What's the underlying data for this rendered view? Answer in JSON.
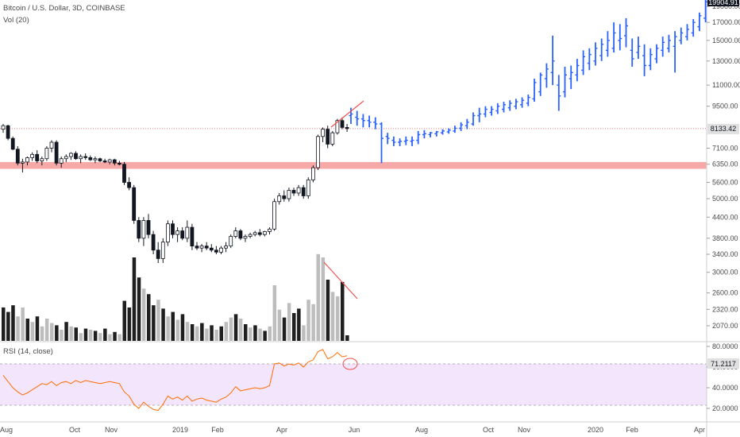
{
  "header": {
    "symbol_line": "Bitcoin / U.S. Dollar, 3D, COINBASE",
    "volume_label": "Vol (20)",
    "rsi_label": "RSI (14, close)"
  },
  "price_tags": {
    "top": "19904.91",
    "current": "8133.42",
    "rsi": "71.2117"
  },
  "colors": {
    "candle": "#131722",
    "projection": "#2962ff",
    "support_zone": "#f7a9a8",
    "trendline": "#ef5350",
    "rsi_line": "#ff6d00",
    "rsi_band": "#f3e5fc"
  },
  "chart_data": {
    "type": "candlestick",
    "price_axis": {
      "ticks": [
        "19000.00",
        "17000.00",
        "15000.00",
        "13000.00",
        "11000.00",
        "9500.00",
        "8133.42",
        "7100.00",
        "6350.00",
        "5600.00",
        "5000.00",
        "4400.00",
        "3800.00",
        "3400.00",
        "3000.00",
        "2600.00",
        "2320.00",
        "2070.00"
      ],
      "scale": "log"
    },
    "rsi_axis": {
      "ticks": [
        "80.0000",
        "71.2117",
        "60.0000",
        "40.0000",
        "20.0000"
      ],
      "band": [
        30,
        70
      ]
    },
    "time_axis": [
      "Aug",
      "Oct",
      "Nov",
      "2019",
      "Feb",
      "Apr",
      "Jun",
      "Aug",
      "Oct",
      "Nov",
      "2020",
      "Feb",
      "Apr"
    ],
    "support_zone": [
      6150,
      6450
    ],
    "current_price": 8133.42,
    "candles": [
      [
        8100,
        8400,
        7900,
        8300
      ],
      [
        8300,
        8350,
        7500,
        7600
      ],
      [
        7600,
        7700,
        7000,
        7050
      ],
      [
        7050,
        7200,
        6300,
        6400
      ],
      [
        6400,
        6600,
        6000,
        6450
      ],
      [
        6450,
        6700,
        6300,
        6650
      ],
      [
        6650,
        6900,
        6500,
        6800
      ],
      [
        6800,
        7000,
        6400,
        6500
      ],
      [
        6500,
        6700,
        6300,
        6600
      ],
      [
        6600,
        7200,
        6500,
        7100
      ],
      [
        7100,
        7500,
        6900,
        7400
      ],
      [
        7400,
        7500,
        6300,
        6400
      ],
      [
        6400,
        6700,
        6200,
        6600
      ],
      [
        6600,
        6800,
        6450,
        6700
      ],
      [
        6700,
        6900,
        6550,
        6850
      ],
      [
        6850,
        6950,
        6550,
        6600
      ],
      [
        6600,
        6800,
        6400,
        6700
      ],
      [
        6700,
        6850,
        6550,
        6650
      ],
      [
        6650,
        6750,
        6500,
        6550
      ],
      [
        6550,
        6700,
        6400,
        6600
      ],
      [
        6600,
        6650,
        6450,
        6500
      ],
      [
        6500,
        6600,
        6400,
        6450
      ],
      [
        6450,
        6600,
        6350,
        6550
      ],
      [
        6550,
        6600,
        6300,
        6400
      ],
      [
        6400,
        6500,
        6300,
        6350
      ],
      [
        6350,
        6450,
        5500,
        5600
      ],
      [
        5600,
        5800,
        5300,
        5400
      ],
      [
        5400,
        5500,
        4200,
        4300
      ],
      [
        4300,
        4400,
        3700,
        3800
      ],
      [
        3800,
        4400,
        3600,
        4300
      ],
      [
        4300,
        4500,
        3800,
        3900
      ],
      [
        3900,
        4000,
        3400,
        3500
      ],
      [
        3500,
        3700,
        3200,
        3300
      ],
      [
        3300,
        3800,
        3200,
        3700
      ],
      [
        3700,
        4300,
        3600,
        4200
      ],
      [
        4200,
        4300,
        3800,
        3900
      ],
      [
        3900,
        4100,
        3700,
        4000
      ],
      [
        4000,
        4100,
        3750,
        3800
      ],
      [
        3800,
        4300,
        3700,
        4100
      ],
      [
        4100,
        4200,
        3500,
        3600
      ],
      [
        3600,
        3700,
        3500,
        3550
      ],
      [
        3550,
        3650,
        3450,
        3600
      ],
      [
        3600,
        3700,
        3500,
        3550
      ],
      [
        3550,
        3650,
        3450,
        3500
      ],
      [
        3500,
        3600,
        3400,
        3450
      ],
      [
        3450,
        3600,
        3400,
        3550
      ],
      [
        3550,
        3700,
        3450,
        3600
      ],
      [
        3600,
        3900,
        3550,
        3850
      ],
      [
        3850,
        4100,
        3800,
        4000
      ],
      [
        4000,
        4050,
        3750,
        3800
      ],
      [
        3800,
        3900,
        3700,
        3850
      ],
      [
        3850,
        3950,
        3800,
        3900
      ],
      [
        3900,
        4000,
        3850,
        3950
      ],
      [
        3950,
        4050,
        3850,
        3900
      ],
      [
        3900,
        4000,
        3850,
        3980
      ],
      [
        3980,
        4100,
        3900,
        4050
      ],
      [
        4050,
        5000,
        4000,
        4900
      ],
      [
        4900,
        5200,
        4800,
        5100
      ],
      [
        5100,
        5300,
        4900,
        5000
      ],
      [
        5000,
        5400,
        4900,
        5300
      ],
      [
        5300,
        5400,
        5100,
        5200
      ],
      [
        5200,
        5500,
        5100,
        5400
      ],
      [
        5400,
        5500,
        5000,
        5100
      ],
      [
        5100,
        5800,
        5000,
        5700
      ],
      [
        5700,
        6300,
        5600,
        6200
      ],
      [
        6200,
        7800,
        6100,
        7700
      ],
      [
        7700,
        8200,
        7400,
        8100
      ],
      [
        8100,
        8300,
        7100,
        7300
      ],
      [
        7300,
        8000,
        7200,
        7900
      ],
      [
        7900,
        8700,
        7800,
        8600
      ],
      [
        8600,
        8800,
        8100,
        8200
      ],
      [
        8200,
        8400,
        7950,
        8133
      ]
    ],
    "volume": [
      [
        0.3,
        "d"
      ],
      [
        0.26,
        "d"
      ],
      [
        0.32,
        "d"
      ],
      [
        0.22,
        "l"
      ],
      [
        0.3,
        "l"
      ],
      [
        0.2,
        "d"
      ],
      [
        0.17,
        "l"
      ],
      [
        0.22,
        "d"
      ],
      [
        0.13,
        "l"
      ],
      [
        0.2,
        "l"
      ],
      [
        0.16,
        "l"
      ],
      [
        0.14,
        "d"
      ],
      [
        0.1,
        "l"
      ],
      [
        0.17,
        "d"
      ],
      [
        0.13,
        "l"
      ],
      [
        0.12,
        "d"
      ],
      [
        0.07,
        "l"
      ],
      [
        0.11,
        "d"
      ],
      [
        0.1,
        "l"
      ],
      [
        0.09,
        "d"
      ],
      [
        0.07,
        "l"
      ],
      [
        0.11,
        "d"
      ],
      [
        0.06,
        "l"
      ],
      [
        0.08,
        "d"
      ],
      [
        0.06,
        "l"
      ],
      [
        0.36,
        "d"
      ],
      [
        0.3,
        "d"
      ],
      [
        0.75,
        "d"
      ],
      [
        0.57,
        "d"
      ],
      [
        0.47,
        "l"
      ],
      [
        0.42,
        "d"
      ],
      [
        0.32,
        "d"
      ],
      [
        0.37,
        "l"
      ],
      [
        0.29,
        "d"
      ],
      [
        0.22,
        "l"
      ],
      [
        0.26,
        "d"
      ],
      [
        0.19,
        "l"
      ],
      [
        0.24,
        "d"
      ],
      [
        0.17,
        "l"
      ],
      [
        0.15,
        "d"
      ],
      [
        0.13,
        "l"
      ],
      [
        0.16,
        "d"
      ],
      [
        0.11,
        "l"
      ],
      [
        0.14,
        "d"
      ],
      [
        0.1,
        "l"
      ],
      [
        0.13,
        "d"
      ],
      [
        0.17,
        "l"
      ],
      [
        0.21,
        "l"
      ],
      [
        0.24,
        "d"
      ],
      [
        0.2,
        "l"
      ],
      [
        0.15,
        "d"
      ],
      [
        0.12,
        "l"
      ],
      [
        0.14,
        "d"
      ],
      [
        0.11,
        "l"
      ],
      [
        0.09,
        "d"
      ],
      [
        0.13,
        "l"
      ],
      [
        0.5,
        "l"
      ],
      [
        0.28,
        "l"
      ],
      [
        0.21,
        "d"
      ],
      [
        0.34,
        "l"
      ],
      [
        0.25,
        "d"
      ],
      [
        0.29,
        "d"
      ],
      [
        0.14,
        "l"
      ],
      [
        0.37,
        "l"
      ],
      [
        0.33,
        "l"
      ],
      [
        0.78,
        "l"
      ],
      [
        0.75,
        "l"
      ],
      [
        0.55,
        "d"
      ],
      [
        0.44,
        "l"
      ],
      [
        0.4,
        "l"
      ],
      [
        0.53,
        "d"
      ],
      [
        0.05,
        "d"
      ]
    ],
    "rsi": [
      52,
      46,
      40,
      36,
      33,
      35,
      38,
      41,
      44,
      43,
      46,
      42,
      45,
      46,
      44,
      47,
      45,
      47,
      46,
      45,
      44,
      45,
      46,
      45,
      44,
      36,
      32,
      24,
      20,
      26,
      22,
      19,
      18,
      24,
      32,
      29,
      31,
      28,
      32,
      27,
      29,
      30,
      28,
      27,
      26,
      29,
      31,
      35,
      41,
      37,
      38,
      39,
      40,
      39,
      40,
      42,
      63,
      64,
      61,
      63,
      62,
      64,
      60,
      65,
      67,
      75,
      77,
      68,
      70,
      74,
      70,
      71
    ],
    "projection": [
      [
        8900,
        9400,
        8400,
        9000
      ],
      [
        8800,
        9200,
        8300,
        8700
      ],
      [
        8700,
        9000,
        8200,
        8600
      ],
      [
        8600,
        8900,
        8200,
        8500
      ],
      [
        8500,
        8800,
        8100,
        8400
      ],
      [
        8400,
        8500,
        6400,
        7600
      ],
      [
        7700,
        7900,
        7300,
        7600
      ],
      [
        7500,
        7700,
        7200,
        7400
      ],
      [
        7400,
        7600,
        7200,
        7450
      ],
      [
        7450,
        7700,
        7250,
        7500
      ],
      [
        7450,
        7700,
        7200,
        7500
      ],
      [
        7500,
        8000,
        7300,
        7800
      ],
      [
        7800,
        8050,
        7600,
        7850
      ],
      [
        7800,
        7950,
        7650,
        7900
      ],
      [
        7850,
        8000,
        7700,
        7950
      ],
      [
        7900,
        8100,
        7800,
        8000
      ],
      [
        7950,
        8150,
        7850,
        8050
      ],
      [
        8000,
        8300,
        7900,
        8150
      ],
      [
        8150,
        8500,
        8000,
        8350
      ],
      [
        8300,
        8700,
        8100,
        8500
      ],
      [
        8400,
        9100,
        8300,
        8900
      ],
      [
        8900,
        9400,
        8500,
        9000
      ],
      [
        9000,
        9500,
        8800,
        9300
      ],
      [
        9100,
        9500,
        8900,
        9300
      ],
      [
        9200,
        9700,
        9000,
        9500
      ],
      [
        9300,
        9800,
        9100,
        9600
      ],
      [
        9400,
        9900,
        9200,
        9700
      ],
      [
        9500,
        10000,
        9300,
        9800
      ],
      [
        9600,
        10100,
        9400,
        9900
      ],
      [
        9700,
        10300,
        9500,
        10100
      ],
      [
        10000,
        11500,
        9800,
        11200
      ],
      [
        10500,
        12000,
        10200,
        11800
      ],
      [
        11500,
        12800,
        10800,
        12300
      ],
      [
        12000,
        15500,
        11000,
        13000
      ],
      [
        11000,
        11800,
        9200,
        10200
      ],
      [
        10500,
        12500,
        10100,
        11800
      ],
      [
        11500,
        12600,
        10700,
        12000
      ],
      [
        11800,
        13200,
        11300,
        12600
      ],
      [
        12200,
        14000,
        11800,
        13400
      ],
      [
        12800,
        14200,
        12200,
        13600
      ],
      [
        13000,
        14800,
        12600,
        14200
      ],
      [
        13500,
        15200,
        13000,
        14600
      ],
      [
        14000,
        16000,
        13400,
        15000
      ],
      [
        14200,
        17000,
        13800,
        15800
      ],
      [
        15000,
        16800,
        14000,
        15200
      ],
      [
        15500,
        17500,
        14300,
        16600
      ],
      [
        14000,
        15200,
        12500,
        13200
      ],
      [
        13800,
        15400,
        13200,
        14400
      ],
      [
        13500,
        14600,
        11700,
        12600
      ],
      [
        12600,
        14200,
        12200,
        13600
      ],
      [
        13200,
        14600,
        12800,
        14200
      ],
      [
        14000,
        15400,
        13400,
        14800
      ],
      [
        14200,
        15600,
        13800,
        15000
      ],
      [
        14400,
        16000,
        12000,
        15400
      ],
      [
        15000,
        16400,
        14600,
        15800
      ],
      [
        15400,
        16800,
        15000,
        16200
      ],
      [
        15800,
        17400,
        15400,
        17000
      ],
      [
        16500,
        18200,
        16000,
        17800
      ],
      [
        17500,
        20000,
        17000,
        19600
      ]
    ]
  }
}
